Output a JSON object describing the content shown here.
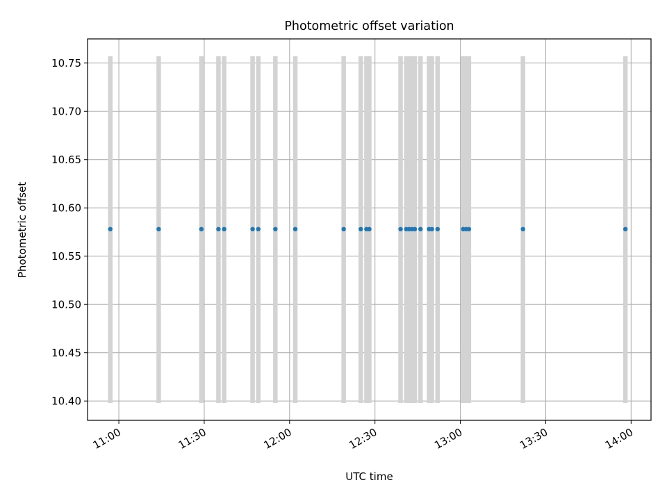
{
  "colors": {
    "point": "#1f77b4",
    "errorbar": "#d3d3d3",
    "grid": "#b0b0b0",
    "axis": "#000000",
    "background": "#ffffff"
  },
  "chart_data": {
    "type": "scatter",
    "title": "Photometric offset variation",
    "xlabel": "UTC time",
    "ylabel": "Photometric offset",
    "x_unit": "UTC time of day",
    "xlim": [
      "10:49",
      "14:07"
    ],
    "ylim": [
      10.38,
      10.775
    ],
    "grid": true,
    "x_ticks": [
      "11:00",
      "11:30",
      "12:00",
      "12:30",
      "13:00",
      "13:30",
      "14:00"
    ],
    "y_ticks": [
      "10.40",
      "10.45",
      "10.50",
      "10.55",
      "10.60",
      "10.65",
      "10.70",
      "10.75"
    ],
    "errorbar_range": [
      10.398,
      10.757
    ],
    "points": [
      {
        "x": "10:57",
        "y": 10.578
      },
      {
        "x": "11:14",
        "y": 10.578
      },
      {
        "x": "11:29",
        "y": 10.578
      },
      {
        "x": "11:35",
        "y": 10.578
      },
      {
        "x": "11:37",
        "y": 10.578
      },
      {
        "x": "11:47",
        "y": 10.578
      },
      {
        "x": "11:49",
        "y": 10.578
      },
      {
        "x": "11:55",
        "y": 10.578
      },
      {
        "x": "12:02",
        "y": 10.578
      },
      {
        "x": "12:19",
        "y": 10.578
      },
      {
        "x": "12:25",
        "y": 10.578
      },
      {
        "x": "12:27",
        "y": 10.578
      },
      {
        "x": "12:28",
        "y": 10.578
      },
      {
        "x": "12:39",
        "y": 10.578
      },
      {
        "x": "12:41",
        "y": 10.578
      },
      {
        "x": "12:42",
        "y": 10.578
      },
      {
        "x": "12:43",
        "y": 10.578
      },
      {
        "x": "12:44",
        "y": 10.578
      },
      {
        "x": "12:46",
        "y": 10.578
      },
      {
        "x": "12:49",
        "y": 10.578
      },
      {
        "x": "12:50",
        "y": 10.578
      },
      {
        "x": "12:52",
        "y": 10.578
      },
      {
        "x": "13:01",
        "y": 10.578
      },
      {
        "x": "13:02",
        "y": 10.578
      },
      {
        "x": "13:03",
        "y": 10.578
      },
      {
        "x": "13:22",
        "y": 10.578
      },
      {
        "x": "13:58",
        "y": 10.578
      }
    ]
  }
}
